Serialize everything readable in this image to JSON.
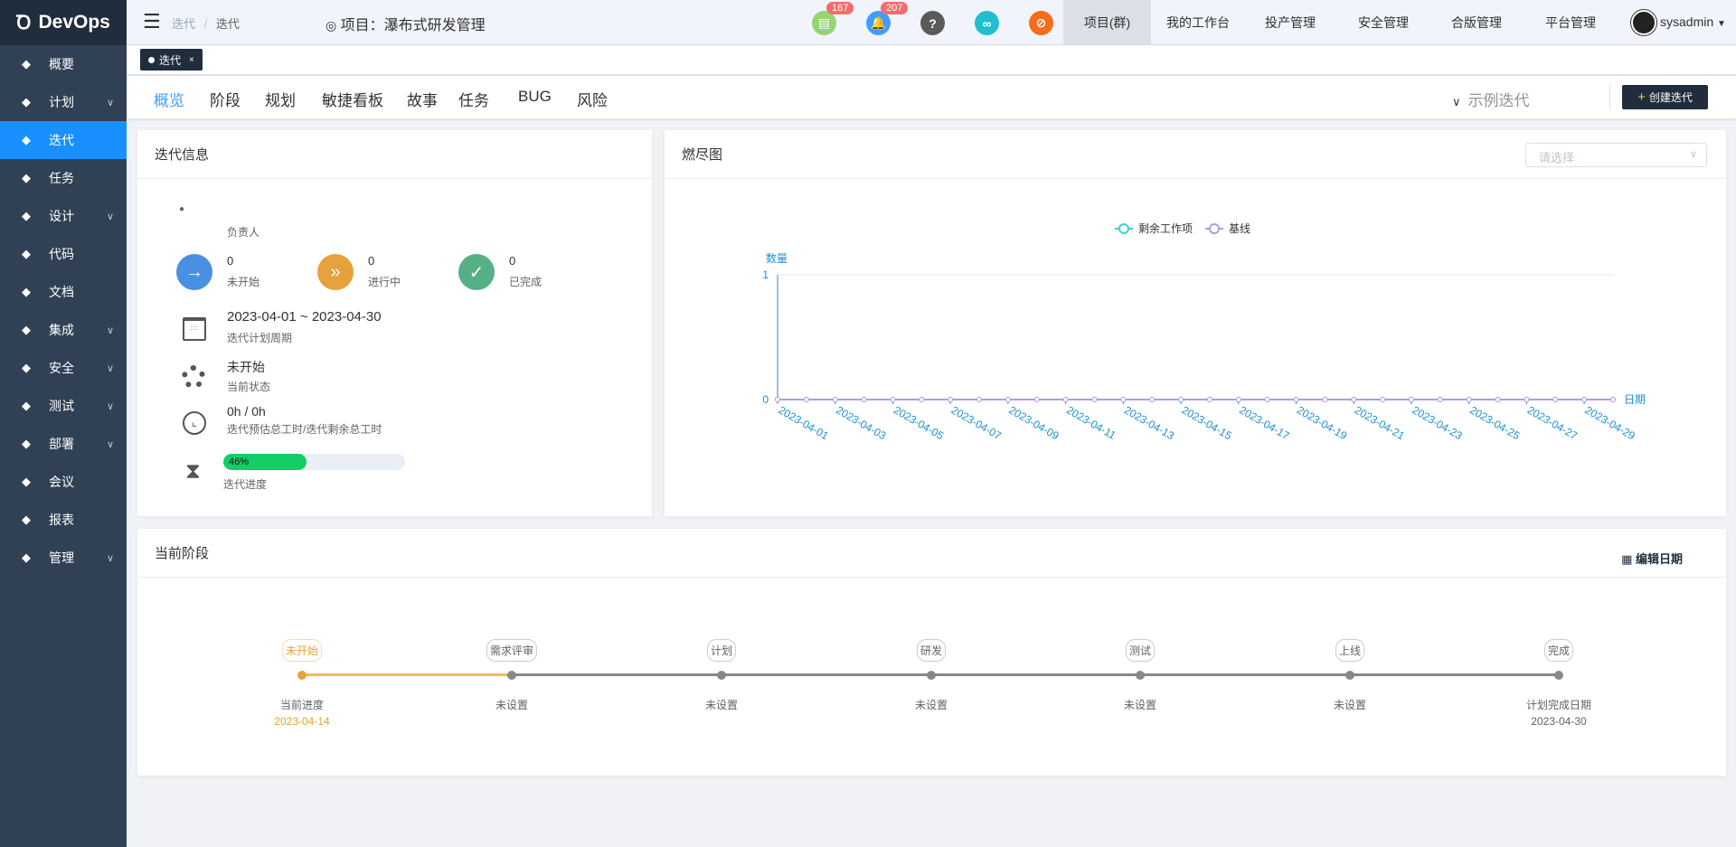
{
  "app": {
    "logo": "DevOps"
  },
  "sidebar": {
    "items": [
      {
        "label": "概要",
        "icon": "dashboard-icon",
        "chev": false
      },
      {
        "label": "计划",
        "icon": "plan-icon",
        "chev": true
      },
      {
        "label": "迭代",
        "icon": "iteration-icon",
        "chev": false,
        "active": true
      },
      {
        "label": "任务",
        "icon": "task-icon",
        "chev": false
      },
      {
        "label": "设计",
        "icon": "design-icon",
        "chev": true
      },
      {
        "label": "代码",
        "icon": "code-icon",
        "chev": false
      },
      {
        "label": "文档",
        "icon": "document-icon",
        "chev": false
      },
      {
        "label": "集成",
        "icon": "integration-icon",
        "chev": true
      },
      {
        "label": "安全",
        "icon": "shield-icon",
        "chev": true
      },
      {
        "label": "测试",
        "icon": "flask-icon",
        "chev": true
      },
      {
        "label": "部署",
        "icon": "crosshair-icon",
        "chev": true
      },
      {
        "label": "会议",
        "icon": "meeting-icon",
        "chev": false
      },
      {
        "label": "报表",
        "icon": "report-icon",
        "chev": false
      },
      {
        "label": "管理",
        "icon": "gear-icon",
        "chev": true
      }
    ]
  },
  "header": {
    "breadcrumb": [
      "迭代",
      "迭代"
    ],
    "project_label": "项目：瀑布式研发管理",
    "icons": [
      {
        "name": "todo-icon",
        "color": "#95d475",
        "badge": "167",
        "glyph": "▤"
      },
      {
        "name": "bell-icon",
        "color": "#409eff",
        "badge": "207",
        "glyph": "🔔"
      },
      {
        "name": "help-icon",
        "color": "#5a5a5a",
        "glyph": "?"
      },
      {
        "name": "link-icon",
        "color": "#1fbfcf",
        "glyph": "∞"
      },
      {
        "name": "no-disturb-icon",
        "color": "#f56c1a",
        "glyph": "⊘"
      }
    ],
    "nav": [
      "项目(群)",
      "我的工作台",
      "投产管理",
      "安全管理",
      "合版管理",
      "平台管理"
    ],
    "user": "sysadmin"
  },
  "tabs": [
    {
      "label": "迭代",
      "close": "×"
    }
  ],
  "subnav": {
    "items": [
      "概览",
      "阶段",
      "规划",
      "敏捷看板",
      "故事",
      "任务",
      "BUG",
      "风险"
    ],
    "active": 0,
    "iteration_select": "示例迭代",
    "create_button": "创建迭代"
  },
  "info": {
    "title": "迭代信息",
    "owner_label": "负责人",
    "stats": [
      {
        "value": "0",
        "label": "未开始",
        "color": "#4a90e2",
        "glyph": "→"
      },
      {
        "value": "0",
        "label": "进行中",
        "color": "#e6a23c",
        "glyph": "»"
      },
      {
        "value": "0",
        "label": "已完成",
        "color": "#55b086",
        "glyph": "✓"
      }
    ],
    "period": "2023-04-01 ~ 2023-04-30",
    "period_label": "迭代计划周期",
    "status": "未开始",
    "status_label": "当前状态",
    "hours": "0h / 0h",
    "hours_label": "迭代预估总工时/迭代剩余总工时",
    "progress": 46,
    "progress_text": "46%",
    "progress_label": "迭代进度"
  },
  "burndown": {
    "title": "燃尽图",
    "select_placeholder": "请选择"
  },
  "chart_data": {
    "type": "line",
    "x": [
      "2023-04-01",
      "2023-04-02",
      "2023-04-03",
      "2023-04-04",
      "2023-04-05",
      "2023-04-06",
      "2023-04-07",
      "2023-04-08",
      "2023-04-09",
      "2023-04-10",
      "2023-04-11",
      "2023-04-12",
      "2023-04-13",
      "2023-04-14",
      "2023-04-15",
      "2023-04-16",
      "2023-04-17",
      "2023-04-18",
      "2023-04-19",
      "2023-04-20",
      "2023-04-21",
      "2023-04-22",
      "2023-04-23",
      "2023-04-24",
      "2023-04-25",
      "2023-04-26",
      "2023-04-27",
      "2023-04-28",
      "2023-04-29",
      "2023-04-30"
    ],
    "tick_labels": [
      "2023-04-01",
      "2023-04-03",
      "2023-04-05",
      "2023-04-07",
      "2023-04-09",
      "2023-04-11",
      "2023-04-13",
      "2023-04-15",
      "2023-04-17",
      "2023-04-19",
      "2023-04-21",
      "2023-04-23",
      "2023-04-25",
      "2023-04-27",
      "2023-04-29"
    ],
    "series": [
      {
        "name": "剩余工作项",
        "color": "#3fd0d0",
        "values": [
          0,
          0,
          0,
          0,
          0,
          0,
          0,
          0,
          0,
          0,
          0,
          0,
          0,
          0,
          0,
          0,
          0,
          0,
          0,
          0,
          0,
          0,
          0,
          0,
          0,
          0,
          0,
          0,
          0,
          0
        ]
      },
      {
        "name": "基线",
        "color": "#b39ddb",
        "values": [
          0,
          0,
          0,
          0,
          0,
          0,
          0,
          0,
          0,
          0,
          0,
          0,
          0,
          0,
          0,
          0,
          0,
          0,
          0,
          0,
          0,
          0,
          0,
          0,
          0,
          0,
          0,
          0,
          0,
          0
        ]
      }
    ],
    "ylabel": "数量",
    "xlabel": "日期",
    "ylim": [
      0,
      1
    ],
    "yticks": [
      "0",
      "1"
    ],
    "legend": "top-center",
    "grid": true
  },
  "stage": {
    "title": "当前阶段",
    "edit_button": "编辑日期",
    "nodes": [
      {
        "label": "未开始",
        "bottom": "当前进度",
        "date": "2023-04-14",
        "current": true
      },
      {
        "label": "需求评审",
        "bottom": "未设置"
      },
      {
        "label": "计划",
        "bottom": "未设置"
      },
      {
        "label": "研发",
        "bottom": "未设置"
      },
      {
        "label": "测试",
        "bottom": "未设置"
      },
      {
        "label": "上线",
        "bottom": "未设置"
      },
      {
        "label": "完成",
        "bottom": "计划完成日期",
        "date": "2023-04-30"
      }
    ]
  }
}
